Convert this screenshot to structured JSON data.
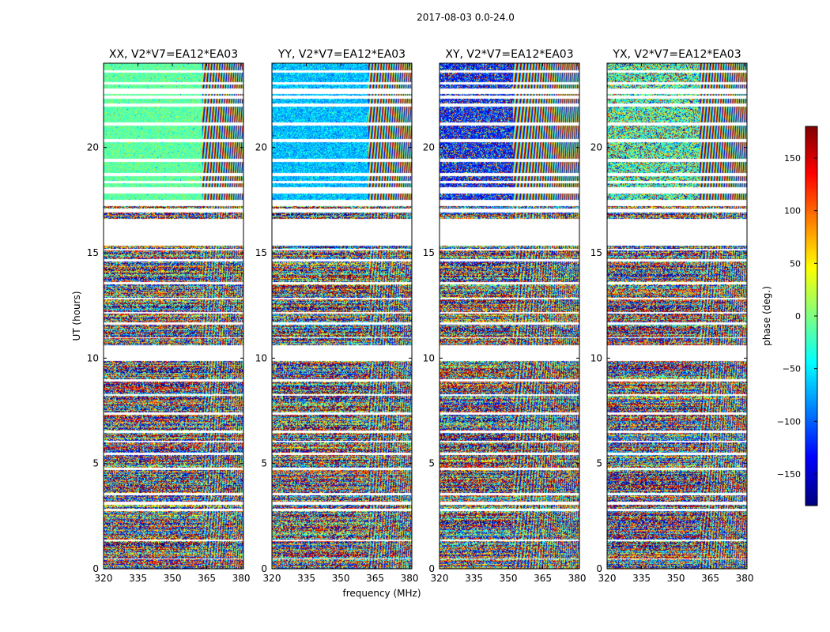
{
  "figure": {
    "suptitle": "2017-08-03 0.0-24.0",
    "xlabel": "frequency (MHz)",
    "ylabel": "UT (hours)"
  },
  "chart_data": {
    "type": "heatmap",
    "x": {
      "label": "frequency (MHz)",
      "lim": [
        320,
        381
      ],
      "ticks": [
        320,
        335,
        350,
        365,
        380
      ]
    },
    "y": {
      "label": "UT (hours)",
      "lim": [
        0,
        24
      ],
      "ticks": [
        0,
        5,
        10,
        15,
        20
      ]
    },
    "panels": [
      {
        "title": "XX, V2*V7=EA12*EA03",
        "style": "smooth_green",
        "smooth_from": 17.2,
        "cross_from": 363
      },
      {
        "title": "YY, V2*V7=EA12*EA03",
        "style": "smooth_blue",
        "smooth_from": 17.2,
        "cross_from": 362
      },
      {
        "title": "XY, V2*V7=EA12*EA03",
        "style": "noisy_dark",
        "smooth_from": 17.2,
        "cross_from": 352
      },
      {
        "title": "YX, V2*V7=EA12*EA03",
        "style": "noisy_mixed",
        "smooth_from": 17.2,
        "cross_from": 360
      }
    ],
    "flagged_ut_ranges": [
      [
        0.45,
        0.5
      ],
      [
        1.3,
        1.4
      ],
      [
        2.75,
        2.85
      ],
      [
        3.05,
        3.2
      ],
      [
        3.5,
        3.6
      ],
      [
        4.7,
        4.8
      ],
      [
        5.4,
        5.5
      ],
      [
        6.0,
        6.08
      ],
      [
        6.45,
        6.55
      ],
      [
        7.3,
        7.42
      ],
      [
        8.2,
        8.3
      ],
      [
        8.9,
        9.0
      ],
      [
        9.85,
        10.6
      ],
      [
        10.95,
        11.0
      ],
      [
        11.6,
        11.7
      ],
      [
        12.1,
        12.2
      ],
      [
        12.8,
        12.88
      ],
      [
        13.5,
        13.6
      ],
      [
        14.6,
        14.7
      ],
      [
        15.1,
        15.2
      ],
      [
        15.35,
        16.6
      ],
      [
        16.9,
        17.1
      ],
      [
        17.2,
        17.5
      ],
      [
        17.8,
        18.1
      ],
      [
        18.3,
        18.4
      ],
      [
        18.65,
        18.8
      ],
      [
        19.3,
        19.45
      ],
      [
        20.25,
        20.4
      ],
      [
        21.05,
        21.2
      ],
      [
        21.95,
        22.1
      ],
      [
        22.3,
        22.45
      ],
      [
        22.55,
        22.8
      ],
      [
        23.0,
        23.1
      ],
      [
        23.55,
        23.65
      ]
    ],
    "colorbar": {
      "label": "phase (deg.)",
      "lim": [
        -180,
        180
      ],
      "ticks": [
        -150,
        -100,
        -50,
        0,
        50,
        100,
        150
      ],
      "tick_labels": [
        "−150",
        "−100",
        "−50",
        "0",
        "50",
        "100",
        "150"
      ],
      "colormap": "jet"
    }
  }
}
